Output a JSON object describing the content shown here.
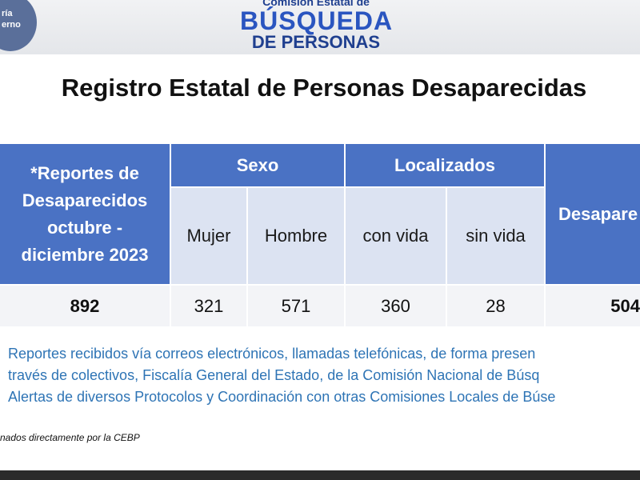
{
  "header": {
    "seal_lines": [
      "ría",
      "erno"
    ],
    "logo_top": "Comisión Estatal de",
    "logo_main": "BÚSQUEDA",
    "logo_sub": "DE PERSONAS"
  },
  "title": "Registro Estatal de Personas Desaparecidas",
  "table": {
    "group_headers": [
      "*Reportes de Desaparecidos octubre - diciembre 2023",
      "Sexo",
      "Localizados",
      "Desapare"
    ],
    "sub_headers": [
      "Mujer",
      "Hombre",
      "con vida",
      "sin vida"
    ],
    "row": [
      "892",
      "321",
      "571",
      "360",
      "28",
      "504"
    ]
  },
  "notes": [
    "Reportes recibidos vía correos electrónicos, llamadas telefónicas, de forma presen",
    "través de colectivos,  Fiscalía General del Estado, de la Comisión Nacional de Búsq",
    "Alertas de diversos Protocolos y Coordinación con otras Comisiones Locales de Búse"
  ],
  "footnote": "nados directamente por la CEBP"
}
